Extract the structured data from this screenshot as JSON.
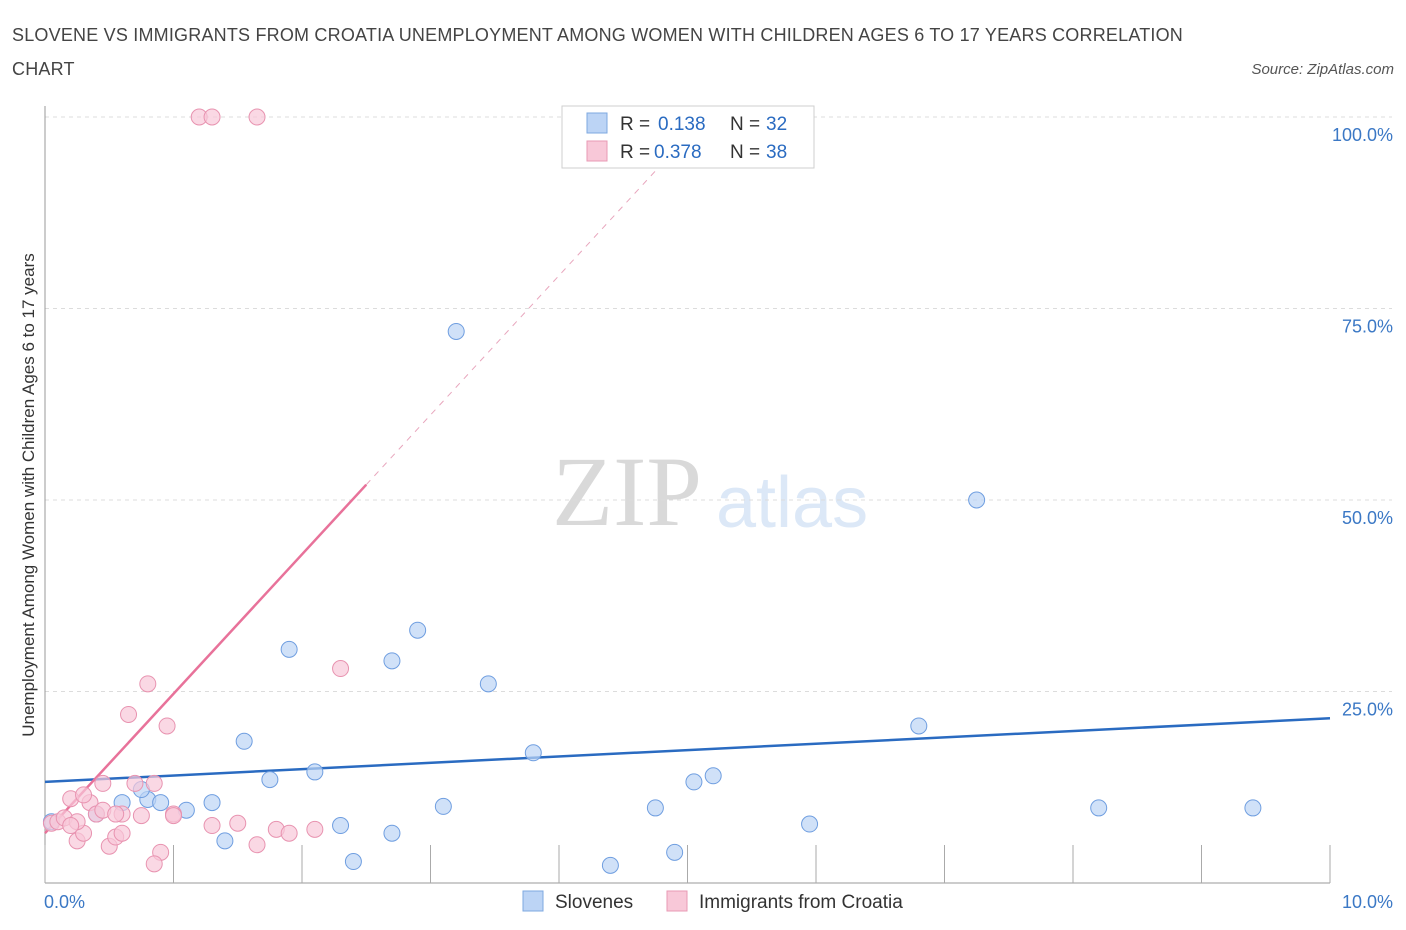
{
  "title": "SLOVENE VS IMMIGRANTS FROM CROATIA UNEMPLOYMENT AMONG WOMEN WITH CHILDREN AGES 6 TO 17 YEARS CORRELATION CHART",
  "source": "Source: ZipAtlas.com",
  "watermark": {
    "zip": "ZIP",
    "atlas": "atlas"
  },
  "colors": {
    "blue": "#2a6bc1",
    "blue_fill": "#bcd4f5",
    "pink": "#e8729a",
    "pink_fill": "#f8c8d8",
    "grid": "#dcdcdc",
    "tick": "#3b78c5"
  },
  "legend": {
    "rows": [
      {
        "r_label": "R =",
        "r_value": "0.138",
        "n_label": "N =",
        "n_value": "32"
      },
      {
        "r_label": "R =",
        "r_value": "0.378",
        "n_label": "N =",
        "n_value": "38"
      }
    ]
  },
  "bottom_legend": [
    "Slovenes",
    "Immigrants from Croatia"
  ],
  "chart_data": {
    "type": "scatter",
    "title": "SLOVENE VS IMMIGRANTS FROM CROATIA UNEMPLOYMENT AMONG WOMEN WITH CHILDREN AGES 6 TO 17 YEARS CORRELATION CHART",
    "xlabel": "",
    "ylabel": "Unemployment Among Women with Children Ages 6 to 17 years",
    "xlim": [
      0,
      10
    ],
    "ylim": [
      0,
      100
    ],
    "x_ticks": [
      "0.0%",
      "10.0%"
    ],
    "y_ticks": [
      {
        "value": 25,
        "label": "25.0%"
      },
      {
        "value": 50,
        "label": "50.0%"
      },
      {
        "value": 75,
        "label": "75.0%"
      },
      {
        "value": 100,
        "label": "100.0%"
      }
    ],
    "series": [
      {
        "name": "Slovenes",
        "color": "#2a6bc1",
        "points": [
          [
            0.05,
            8.0
          ],
          [
            0.4,
            9.0
          ],
          [
            0.6,
            10.5
          ],
          [
            0.8,
            10.9
          ],
          [
            0.75,
            12.2
          ],
          [
            0.9,
            10.5
          ],
          [
            1.1,
            9.5
          ],
          [
            1.3,
            10.5
          ],
          [
            1.4,
            5.5
          ],
          [
            1.55,
            18.5
          ],
          [
            1.75,
            13.5
          ],
          [
            1.9,
            30.5
          ],
          [
            2.1,
            14.5
          ],
          [
            2.3,
            7.5
          ],
          [
            2.4,
            2.8
          ],
          [
            2.7,
            6.5
          ],
          [
            2.7,
            29.0
          ],
          [
            2.9,
            33.0
          ],
          [
            3.1,
            10.0
          ],
          [
            3.2,
            72.0
          ],
          [
            3.45,
            26.0
          ],
          [
            3.8,
            17.0
          ],
          [
            4.4,
            2.3
          ],
          [
            4.75,
            9.8
          ],
          [
            4.9,
            4.0
          ],
          [
            5.05,
            13.2
          ],
          [
            5.2,
            14.0
          ],
          [
            5.95,
            7.7
          ],
          [
            6.8,
            20.5
          ],
          [
            7.25,
            50.0
          ],
          [
            8.2,
            9.8
          ],
          [
            9.4,
            9.8
          ]
        ]
      },
      {
        "name": "Immigrants from Croatia",
        "color": "#e8729a",
        "points": [
          [
            0.05,
            7.8
          ],
          [
            0.1,
            8.0
          ],
          [
            0.15,
            8.5
          ],
          [
            0.2,
            11.0
          ],
          [
            0.25,
            5.5
          ],
          [
            0.3,
            6.5
          ],
          [
            0.35,
            10.5
          ],
          [
            0.4,
            9.0
          ],
          [
            0.45,
            13.0
          ],
          [
            0.5,
            4.8
          ],
          [
            0.55,
            6.0
          ],
          [
            0.6,
            9.0
          ],
          [
            0.65,
            22.0
          ],
          [
            0.7,
            13.0
          ],
          [
            0.75,
            8.8
          ],
          [
            0.8,
            26.0
          ],
          [
            0.85,
            13.0
          ],
          [
            0.9,
            4.0
          ],
          [
            0.95,
            20.5
          ],
          [
            1.0,
            9.0
          ],
          [
            0.3,
            11.5
          ],
          [
            0.45,
            9.5
          ],
          [
            0.6,
            6.5
          ],
          [
            0.85,
            2.5
          ],
          [
            1.0,
            8.8
          ],
          [
            1.3,
            7.5
          ],
          [
            1.5,
            7.8
          ],
          [
            1.65,
            5.0
          ],
          [
            1.8,
            7.0
          ],
          [
            1.9,
            6.5
          ],
          [
            2.1,
            7.0
          ],
          [
            2.3,
            28.0
          ],
          [
            1.2,
            100.0
          ],
          [
            1.3,
            100.0
          ],
          [
            1.65,
            100.0
          ],
          [
            0.25,
            8.0
          ],
          [
            0.55,
            9.0
          ],
          [
            0.2,
            7.5
          ]
        ]
      }
    ],
    "trendlines": [
      {
        "series": "Slovenes",
        "x": [
          0.0,
          10.0
        ],
        "y": [
          13.2,
          21.5
        ],
        "style": "solid"
      },
      {
        "series": "Immigrants from Croatia",
        "x": [
          0.0,
          2.5
        ],
        "y": [
          6.5,
          52.0
        ],
        "style": "solid"
      },
      {
        "series": "Immigrants from Croatia",
        "x": [
          2.5,
          5.0
        ],
        "y": [
          52.0,
          97.5
        ],
        "style": "dashed"
      }
    ]
  }
}
